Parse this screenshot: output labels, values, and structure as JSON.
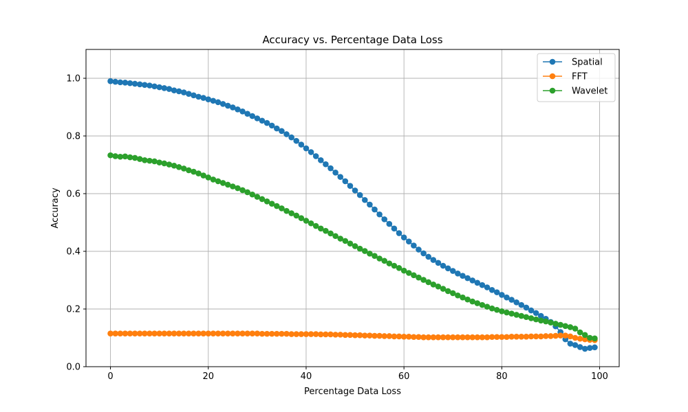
{
  "chart_data": {
    "type": "line",
    "title": "Accuracy vs. Percentage Data Loss",
    "xlabel": "Percentage Data Loss",
    "ylabel": "Accuracy",
    "xlim": [
      -5,
      104
    ],
    "ylim": [
      0,
      1.1
    ],
    "xticks": [
      0,
      20,
      40,
      60,
      80,
      100
    ],
    "yticks": [
      0.0,
      0.2,
      0.4,
      0.6,
      0.8,
      1.0
    ],
    "xtick_labels": [
      "0",
      "20",
      "40",
      "60",
      "80",
      "100"
    ],
    "ytick_labels": [
      "0.0",
      "0.2",
      "0.4",
      "0.6",
      "0.8",
      "1.0"
    ],
    "grid": true,
    "legend_position": "top-right",
    "x_start": 0,
    "x_step": 1,
    "series": [
      {
        "name": "Spatial",
        "color": "#1f77b4",
        "values": [
          0.99,
          0.988,
          0.986,
          0.985,
          0.983,
          0.981,
          0.979,
          0.977,
          0.975,
          0.972,
          0.969,
          0.966,
          0.963,
          0.958,
          0.955,
          0.951,
          0.946,
          0.941,
          0.936,
          0.932,
          0.927,
          0.922,
          0.917,
          0.911,
          0.905,
          0.899,
          0.892,
          0.885,
          0.877,
          0.869,
          0.861,
          0.853,
          0.845,
          0.836,
          0.826,
          0.817,
          0.806,
          0.795,
          0.783,
          0.77,
          0.757,
          0.744,
          0.73,
          0.716,
          0.702,
          0.688,
          0.673,
          0.658,
          0.643,
          0.627,
          0.611,
          0.595,
          0.578,
          0.562,
          0.545,
          0.528,
          0.511,
          0.495,
          0.479,
          0.463,
          0.448,
          0.434,
          0.42,
          0.406,
          0.393,
          0.381,
          0.37,
          0.36,
          0.35,
          0.341,
          0.332,
          0.323,
          0.315,
          0.307,
          0.299,
          0.291,
          0.283,
          0.275,
          0.266,
          0.258,
          0.249,
          0.24,
          0.232,
          0.223,
          0.214,
          0.205,
          0.195,
          0.186,
          0.176,
          0.166,
          0.155,
          0.14,
          0.12,
          0.095,
          0.08,
          0.075,
          0.068,
          0.062,
          0.065,
          0.067
        ]
      },
      {
        "name": "FFT",
        "color": "#ff7f0e",
        "values": [
          0.115,
          0.115,
          0.115,
          0.115,
          0.115,
          0.115,
          0.115,
          0.115,
          0.115,
          0.115,
          0.115,
          0.115,
          0.115,
          0.115,
          0.115,
          0.115,
          0.115,
          0.115,
          0.115,
          0.115,
          0.115,
          0.115,
          0.115,
          0.115,
          0.115,
          0.115,
          0.115,
          0.115,
          0.115,
          0.115,
          0.115,
          0.114,
          0.114,
          0.114,
          0.114,
          0.114,
          0.114,
          0.113,
          0.113,
          0.113,
          0.113,
          0.113,
          0.113,
          0.112,
          0.112,
          0.112,
          0.111,
          0.111,
          0.11,
          0.11,
          0.109,
          0.109,
          0.108,
          0.108,
          0.107,
          0.107,
          0.106,
          0.106,
          0.105,
          0.105,
          0.104,
          0.104,
          0.103,
          0.103,
          0.102,
          0.102,
          0.102,
          0.102,
          0.102,
          0.102,
          0.102,
          0.102,
          0.102,
          0.102,
          0.102,
          0.102,
          0.102,
          0.102,
          0.103,
          0.103,
          0.103,
          0.103,
          0.104,
          0.104,
          0.104,
          0.104,
          0.105,
          0.105,
          0.105,
          0.106,
          0.106,
          0.107,
          0.108,
          0.108,
          0.105,
          0.1,
          0.097,
          0.095,
          0.093,
          0.092
        ]
      },
      {
        "name": "Wavelet",
        "color": "#2ca02c",
        "values": [
          0.733,
          0.73,
          0.728,
          0.729,
          0.726,
          0.724,
          0.72,
          0.716,
          0.714,
          0.712,
          0.708,
          0.705,
          0.701,
          0.697,
          0.692,
          0.687,
          0.681,
          0.676,
          0.67,
          0.663,
          0.656,
          0.649,
          0.643,
          0.637,
          0.631,
          0.625,
          0.619,
          0.612,
          0.605,
          0.597,
          0.589,
          0.581,
          0.573,
          0.565,
          0.557,
          0.549,
          0.54,
          0.532,
          0.524,
          0.515,
          0.506,
          0.497,
          0.488,
          0.479,
          0.471,
          0.462,
          0.453,
          0.444,
          0.436,
          0.427,
          0.418,
          0.409,
          0.401,
          0.392,
          0.384,
          0.375,
          0.367,
          0.358,
          0.35,
          0.342,
          0.333,
          0.325,
          0.317,
          0.309,
          0.301,
          0.293,
          0.285,
          0.278,
          0.27,
          0.262,
          0.255,
          0.247,
          0.24,
          0.233,
          0.226,
          0.22,
          0.214,
          0.208,
          0.202,
          0.197,
          0.192,
          0.188,
          0.184,
          0.18,
          0.176,
          0.172,
          0.168,
          0.164,
          0.16,
          0.157,
          0.153,
          0.149,
          0.145,
          0.141,
          0.137,
          0.132,
          0.119,
          0.11,
          0.1,
          0.098
        ]
      }
    ]
  }
}
